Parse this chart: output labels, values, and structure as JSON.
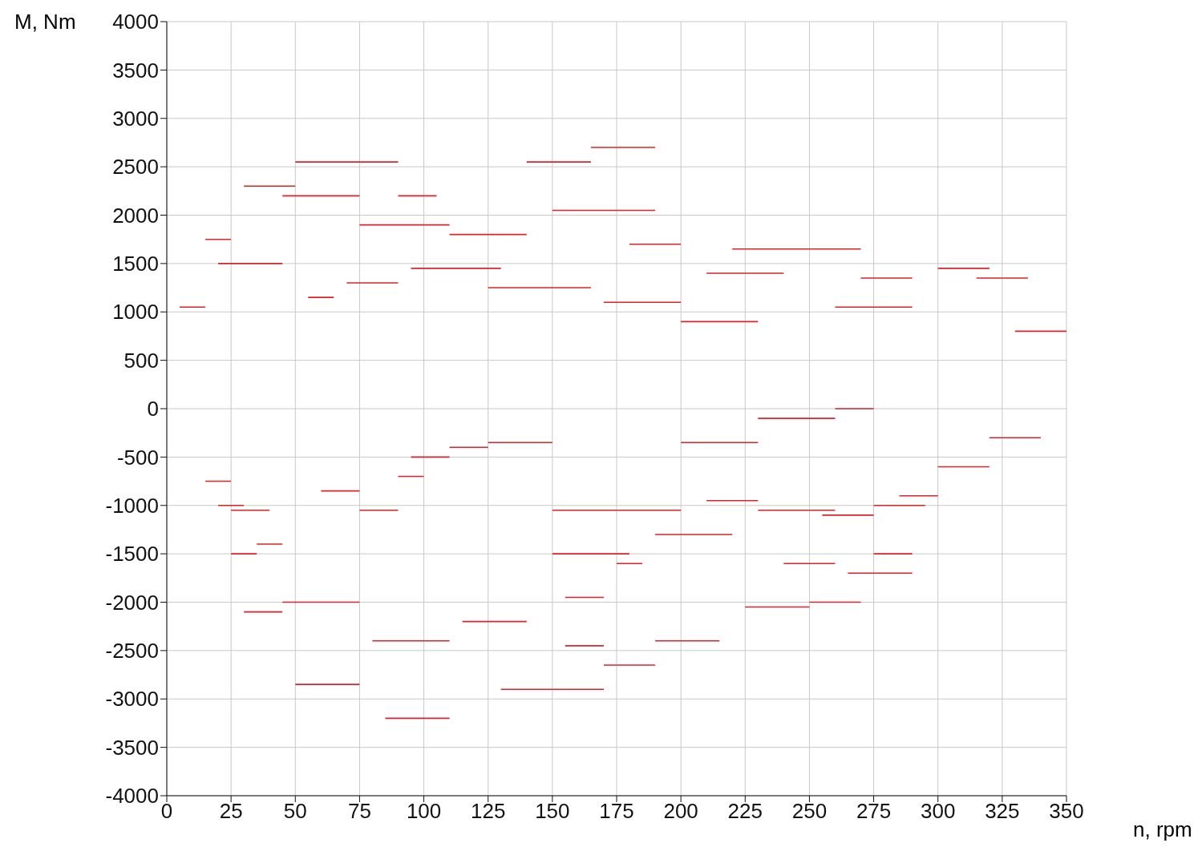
{
  "chart_data": {
    "type": "line",
    "xlabel": "n, rpm",
    "ylabel": "M, Nm",
    "xlim": [
      0,
      350
    ],
    "xticks": [
      0,
      25,
      50,
      75,
      100,
      125,
      150,
      175,
      200,
      225,
      250,
      275,
      300,
      325,
      350
    ],
    "ylim": [
      -4000,
      4000
    ],
    "yticks": [
      -4000,
      -3500,
      -3000,
      -2500,
      -2000,
      -1500,
      -1000,
      -500,
      0,
      500,
      1000,
      1500,
      2000,
      2500,
      3000,
      3500,
      4000
    ],
    "grid": true,
    "marker": "none",
    "line_style": "solid",
    "series": [
      {
        "color": "#e0202a",
        "x": [
          50,
          90
        ],
        "values": [
          2550,
          2550
        ]
      },
      {
        "color": "#e0202a",
        "x": [
          30,
          50
        ],
        "values": [
          2300,
          2300
        ]
      },
      {
        "color": "#e0202a",
        "x": [
          45,
          75
        ],
        "values": [
          2200,
          2200
        ]
      },
      {
        "color": "#e0202a",
        "x": [
          90,
          105
        ],
        "values": [
          2200,
          2200
        ]
      },
      {
        "color": "#e0202a",
        "x": [
          140,
          165
        ],
        "values": [
          2550,
          2550
        ]
      },
      {
        "color": "#e0202a",
        "x": [
          165,
          190
        ],
        "values": [
          2700,
          2700
        ]
      },
      {
        "color": "#e0202a",
        "x": [
          75,
          110
        ],
        "values": [
          1900,
          1900
        ]
      },
      {
        "color": "#e0202a",
        "x": [
          110,
          140
        ],
        "values": [
          1800,
          1800
        ]
      },
      {
        "color": "#e0202a",
        "x": [
          150,
          190
        ],
        "values": [
          2050,
          2050
        ]
      },
      {
        "color": "#e0202a",
        "x": [
          20,
          45
        ],
        "values": [
          1500,
          1500
        ]
      },
      {
        "color": "#e0202a",
        "x": [
          15,
          25
        ],
        "values": [
          1750,
          1750
        ]
      },
      {
        "color": "#e0202a",
        "x": [
          180,
          200
        ],
        "values": [
          1700,
          1700
        ]
      },
      {
        "color": "#e0202a",
        "x": [
          220,
          270
        ],
        "values": [
          1650,
          1650
        ]
      },
      {
        "color": "#e0202a",
        "x": [
          300,
          320
        ],
        "values": [
          1450,
          1450
        ]
      },
      {
        "color": "#e0202a",
        "x": [
          315,
          335
        ],
        "values": [
          1350,
          1350
        ]
      },
      {
        "color": "#e0202a",
        "x": [
          270,
          290
        ],
        "values": [
          1350,
          1350
        ]
      },
      {
        "color": "#e0202a",
        "x": [
          210,
          240
        ],
        "values": [
          1400,
          1400
        ]
      },
      {
        "color": "#e0202a",
        "x": [
          5,
          15
        ],
        "values": [
          1050,
          1050
        ]
      },
      {
        "color": "#e0202a",
        "x": [
          260,
          290
        ],
        "values": [
          1050,
          1050
        ]
      },
      {
        "color": "#e0202a",
        "x": [
          330,
          350
        ],
        "values": [
          800,
          800
        ]
      },
      {
        "color": "#e0202a",
        "x": [
          55,
          65
        ],
        "values": [
          1150,
          1150
        ]
      },
      {
        "color": "#e0202a",
        "x": [
          70,
          90
        ],
        "values": [
          1300,
          1300
        ]
      },
      {
        "color": "#e0202a",
        "x": [
          95,
          130
        ],
        "values": [
          1450,
          1450
        ]
      },
      {
        "color": "#e0202a",
        "x": [
          125,
          165
        ],
        "values": [
          1250,
          1250
        ]
      },
      {
        "color": "#e0202a",
        "x": [
          170,
          200
        ],
        "values": [
          1100,
          1100
        ]
      },
      {
        "color": "#e0202a",
        "x": [
          200,
          230
        ],
        "values": [
          900,
          900
        ]
      },
      {
        "color": "#e0202a",
        "x": [
          15,
          25
        ],
        "values": [
          -750,
          -750
        ]
      },
      {
        "color": "#e0202a",
        "x": [
          20,
          30
        ],
        "values": [
          -1000,
          -1000
        ]
      },
      {
        "color": "#e0202a",
        "x": [
          25,
          40
        ],
        "values": [
          -1050,
          -1050
        ]
      },
      {
        "color": "#e0202a",
        "x": [
          25,
          35
        ],
        "values": [
          -1500,
          -1500
        ]
      },
      {
        "color": "#e0202a",
        "x": [
          35,
          45
        ],
        "values": [
          -1400,
          -1400
        ]
      },
      {
        "color": "#e0202a",
        "x": [
          45,
          75
        ],
        "values": [
          -2000,
          -2000
        ]
      },
      {
        "color": "#e0202a",
        "x": [
          30,
          45
        ],
        "values": [
          -2100,
          -2100
        ]
      },
      {
        "color": "#e0202a",
        "x": [
          80,
          110
        ],
        "values": [
          -2400,
          -2400
        ]
      },
      {
        "color": "#e0202a",
        "x": [
          50,
          75
        ],
        "values": [
          -2850,
          -2850
        ]
      },
      {
        "color": "#e0202a",
        "x": [
          85,
          110
        ],
        "values": [
          -3200,
          -3200
        ]
      },
      {
        "color": "#e0202a",
        "x": [
          130,
          170
        ],
        "values": [
          -2900,
          -2900
        ]
      },
      {
        "color": "#e0202a",
        "x": [
          115,
          140
        ],
        "values": [
          -2200,
          -2200
        ]
      },
      {
        "color": "#e0202a",
        "x": [
          155,
          170
        ],
        "values": [
          -1950,
          -1950
        ]
      },
      {
        "color": "#e0202a",
        "x": [
          155,
          170
        ],
        "values": [
          -2450,
          -2450
        ]
      },
      {
        "color": "#e0202a",
        "x": [
          170,
          190
        ],
        "values": [
          -2650,
          -2650
        ]
      },
      {
        "color": "#e0202a",
        "x": [
          190,
          215
        ],
        "values": [
          -2400,
          -2400
        ]
      },
      {
        "color": "#e0202a",
        "x": [
          225,
          250
        ],
        "values": [
          -2050,
          -2050
        ]
      },
      {
        "color": "#e0202a",
        "x": [
          250,
          270
        ],
        "values": [
          -2000,
          -2000
        ]
      },
      {
        "color": "#e0202a",
        "x": [
          240,
          260
        ],
        "values": [
          -1600,
          -1600
        ]
      },
      {
        "color": "#e0202a",
        "x": [
          265,
          290
        ],
        "values": [
          -1700,
          -1700
        ]
      },
      {
        "color": "#e0202a",
        "x": [
          275,
          290
        ],
        "values": [
          -1500,
          -1500
        ]
      },
      {
        "color": "#e0202a",
        "x": [
          255,
          275
        ],
        "values": [
          -1100,
          -1100
        ]
      },
      {
        "color": "#e0202a",
        "x": [
          275,
          295
        ],
        "values": [
          -1000,
          -1000
        ]
      },
      {
        "color": "#e0202a",
        "x": [
          285,
          300
        ],
        "values": [
          -900,
          -900
        ]
      },
      {
        "color": "#e0202a",
        "x": [
          300,
          320
        ],
        "values": [
          -600,
          -600
        ]
      },
      {
        "color": "#e0202a",
        "x": [
          320,
          340
        ],
        "values": [
          -300,
          -300
        ]
      },
      {
        "color": "#e0202a",
        "x": [
          150,
          200
        ],
        "values": [
          -1050,
          -1050
        ]
      },
      {
        "color": "#e0202a",
        "x": [
          150,
          180
        ],
        "values": [
          -1500,
          -1500
        ]
      },
      {
        "color": "#e0202a",
        "x": [
          175,
          185
        ],
        "values": [
          -1600,
          -1600
        ]
      },
      {
        "color": "#e0202a",
        "x": [
          190,
          220
        ],
        "values": [
          -1300,
          -1300
        ]
      },
      {
        "color": "#e0202a",
        "x": [
          210,
          230
        ],
        "values": [
          -950,
          -950
        ]
      },
      {
        "color": "#e0202a",
        "x": [
          230,
          260
        ],
        "values": [
          -1050,
          -1050
        ]
      },
      {
        "color": "#e0202a",
        "x": [
          60,
          75
        ],
        "values": [
          -850,
          -850
        ]
      },
      {
        "color": "#e0202a",
        "x": [
          75,
          90
        ],
        "values": [
          -1050,
          -1050
        ]
      },
      {
        "color": "#e0202a",
        "x": [
          90,
          100
        ],
        "values": [
          -700,
          -700
        ]
      },
      {
        "color": "#e0202a",
        "x": [
          95,
          110
        ],
        "values": [
          -500,
          -500
        ]
      },
      {
        "color": "#e0202a",
        "x": [
          110,
          125
        ],
        "values": [
          -400,
          -400
        ]
      },
      {
        "color": "#e0202a",
        "x": [
          125,
          150
        ],
        "values": [
          -350,
          -350
        ]
      },
      {
        "color": "#e0202a",
        "x": [
          200,
          230
        ],
        "values": [
          -350,
          -350
        ]
      },
      {
        "color": "#e0202a",
        "x": [
          230,
          260
        ],
        "values": [
          -100,
          -100
        ]
      },
      {
        "color": "#e0202a",
        "x": [
          260,
          275
        ],
        "values": [
          0,
          0
        ]
      }
    ]
  }
}
